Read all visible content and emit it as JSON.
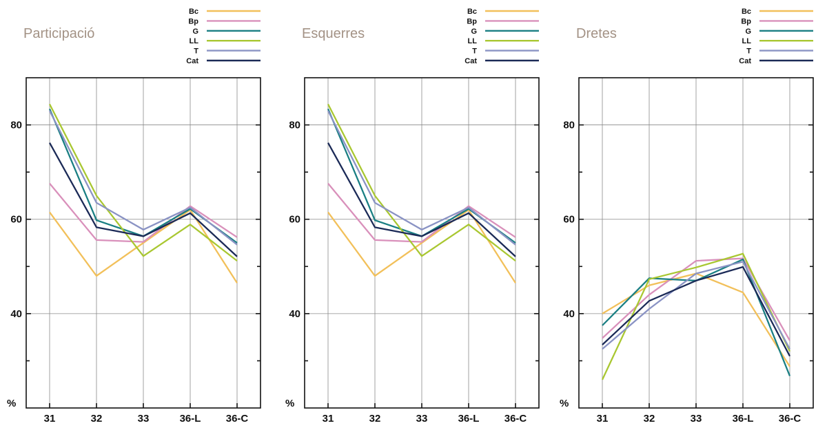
{
  "chart_data": [
    {
      "type": "line",
      "title": "Participació",
      "unit_label": "%",
      "categories": [
        "31",
        "32",
        "33",
        "36-L",
        "36-C"
      ],
      "ylim": [
        20,
        90
      ],
      "yticks": [
        40,
        60,
        80
      ],
      "grid": true,
      "legend_position": "top-right",
      "series": [
        {
          "name": "Bc",
          "color": "#f2c05a",
          "values": [
            61.5,
            48.0,
            55.0,
            62.0,
            46.5
          ]
        },
        {
          "name": "Bp",
          "color": "#d990bb",
          "values": [
            67.6,
            55.6,
            55.2,
            62.8,
            56.2
          ]
        },
        {
          "name": "G",
          "color": "#1a7f83",
          "values": [
            83.4,
            59.8,
            56.4,
            62.2,
            55.0
          ]
        },
        {
          "name": "LL",
          "color": "#a9c731",
          "values": [
            84.4,
            65.0,
            52.2,
            58.9,
            51.2
          ]
        },
        {
          "name": "T",
          "color": "#8a93c4",
          "values": [
            83.0,
            63.5,
            57.8,
            62.5,
            54.6
          ]
        },
        {
          "name": "Cat",
          "color": "#1b2a57",
          "values": [
            76.2,
            58.3,
            56.4,
            61.3,
            52.1
          ]
        }
      ]
    },
    {
      "type": "line",
      "title": "Esquerres",
      "unit_label": "%",
      "categories": [
        "31",
        "32",
        "33",
        "36-L",
        "36-C"
      ],
      "ylim": [
        20,
        90
      ],
      "yticks": [
        40,
        60,
        80
      ],
      "grid": true,
      "legend_position": "top-right",
      "series": [
        {
          "name": "Bc",
          "color": "#f2c05a",
          "values": [
            61.5,
            48.0,
            55.0,
            62.0,
            46.5
          ]
        },
        {
          "name": "Bp",
          "color": "#d990bb",
          "values": [
            67.6,
            55.6,
            55.2,
            62.8,
            56.2
          ]
        },
        {
          "name": "G",
          "color": "#1a7f83",
          "values": [
            83.4,
            59.8,
            56.4,
            62.2,
            55.0
          ]
        },
        {
          "name": "LL",
          "color": "#a9c731",
          "values": [
            84.4,
            65.0,
            52.2,
            58.9,
            51.2
          ]
        },
        {
          "name": "T",
          "color": "#8a93c4",
          "values": [
            83.0,
            63.5,
            57.8,
            62.5,
            54.6
          ]
        },
        {
          "name": "Cat",
          "color": "#1b2a57",
          "values": [
            76.2,
            58.3,
            56.4,
            61.3,
            52.1
          ]
        }
      ]
    },
    {
      "type": "line",
      "title": "Dretes",
      "unit_label": "%",
      "categories": [
        "31",
        "32",
        "33",
        "36-L",
        "36-C"
      ],
      "ylim": [
        20,
        90
      ],
      "yticks": [
        40,
        60,
        80
      ],
      "grid": true,
      "legend_position": "top-right",
      "series": [
        {
          "name": "Bc",
          "color": "#f2c05a",
          "values": [
            40.0,
            46.0,
            48.5,
            44.5,
            28.8
          ]
        },
        {
          "name": "Bp",
          "color": "#d990bb",
          "values": [
            34.8,
            44.0,
            51.2,
            51.7,
            34.3
          ]
        },
        {
          "name": "G",
          "color": "#1a7f83",
          "values": [
            37.5,
            47.5,
            47.0,
            51.5,
            26.8
          ]
        },
        {
          "name": "LL",
          "color": "#a9c731",
          "values": [
            26.0,
            47.3,
            49.8,
            52.7,
            32.0
          ]
        },
        {
          "name": "T",
          "color": "#8a93c4",
          "values": [
            32.5,
            41.0,
            48.5,
            51.0,
            32.5
          ]
        },
        {
          "name": "Cat",
          "color": "#1b2a57",
          "values": [
            33.4,
            42.7,
            47.0,
            49.9,
            31.0
          ]
        }
      ]
    }
  ]
}
